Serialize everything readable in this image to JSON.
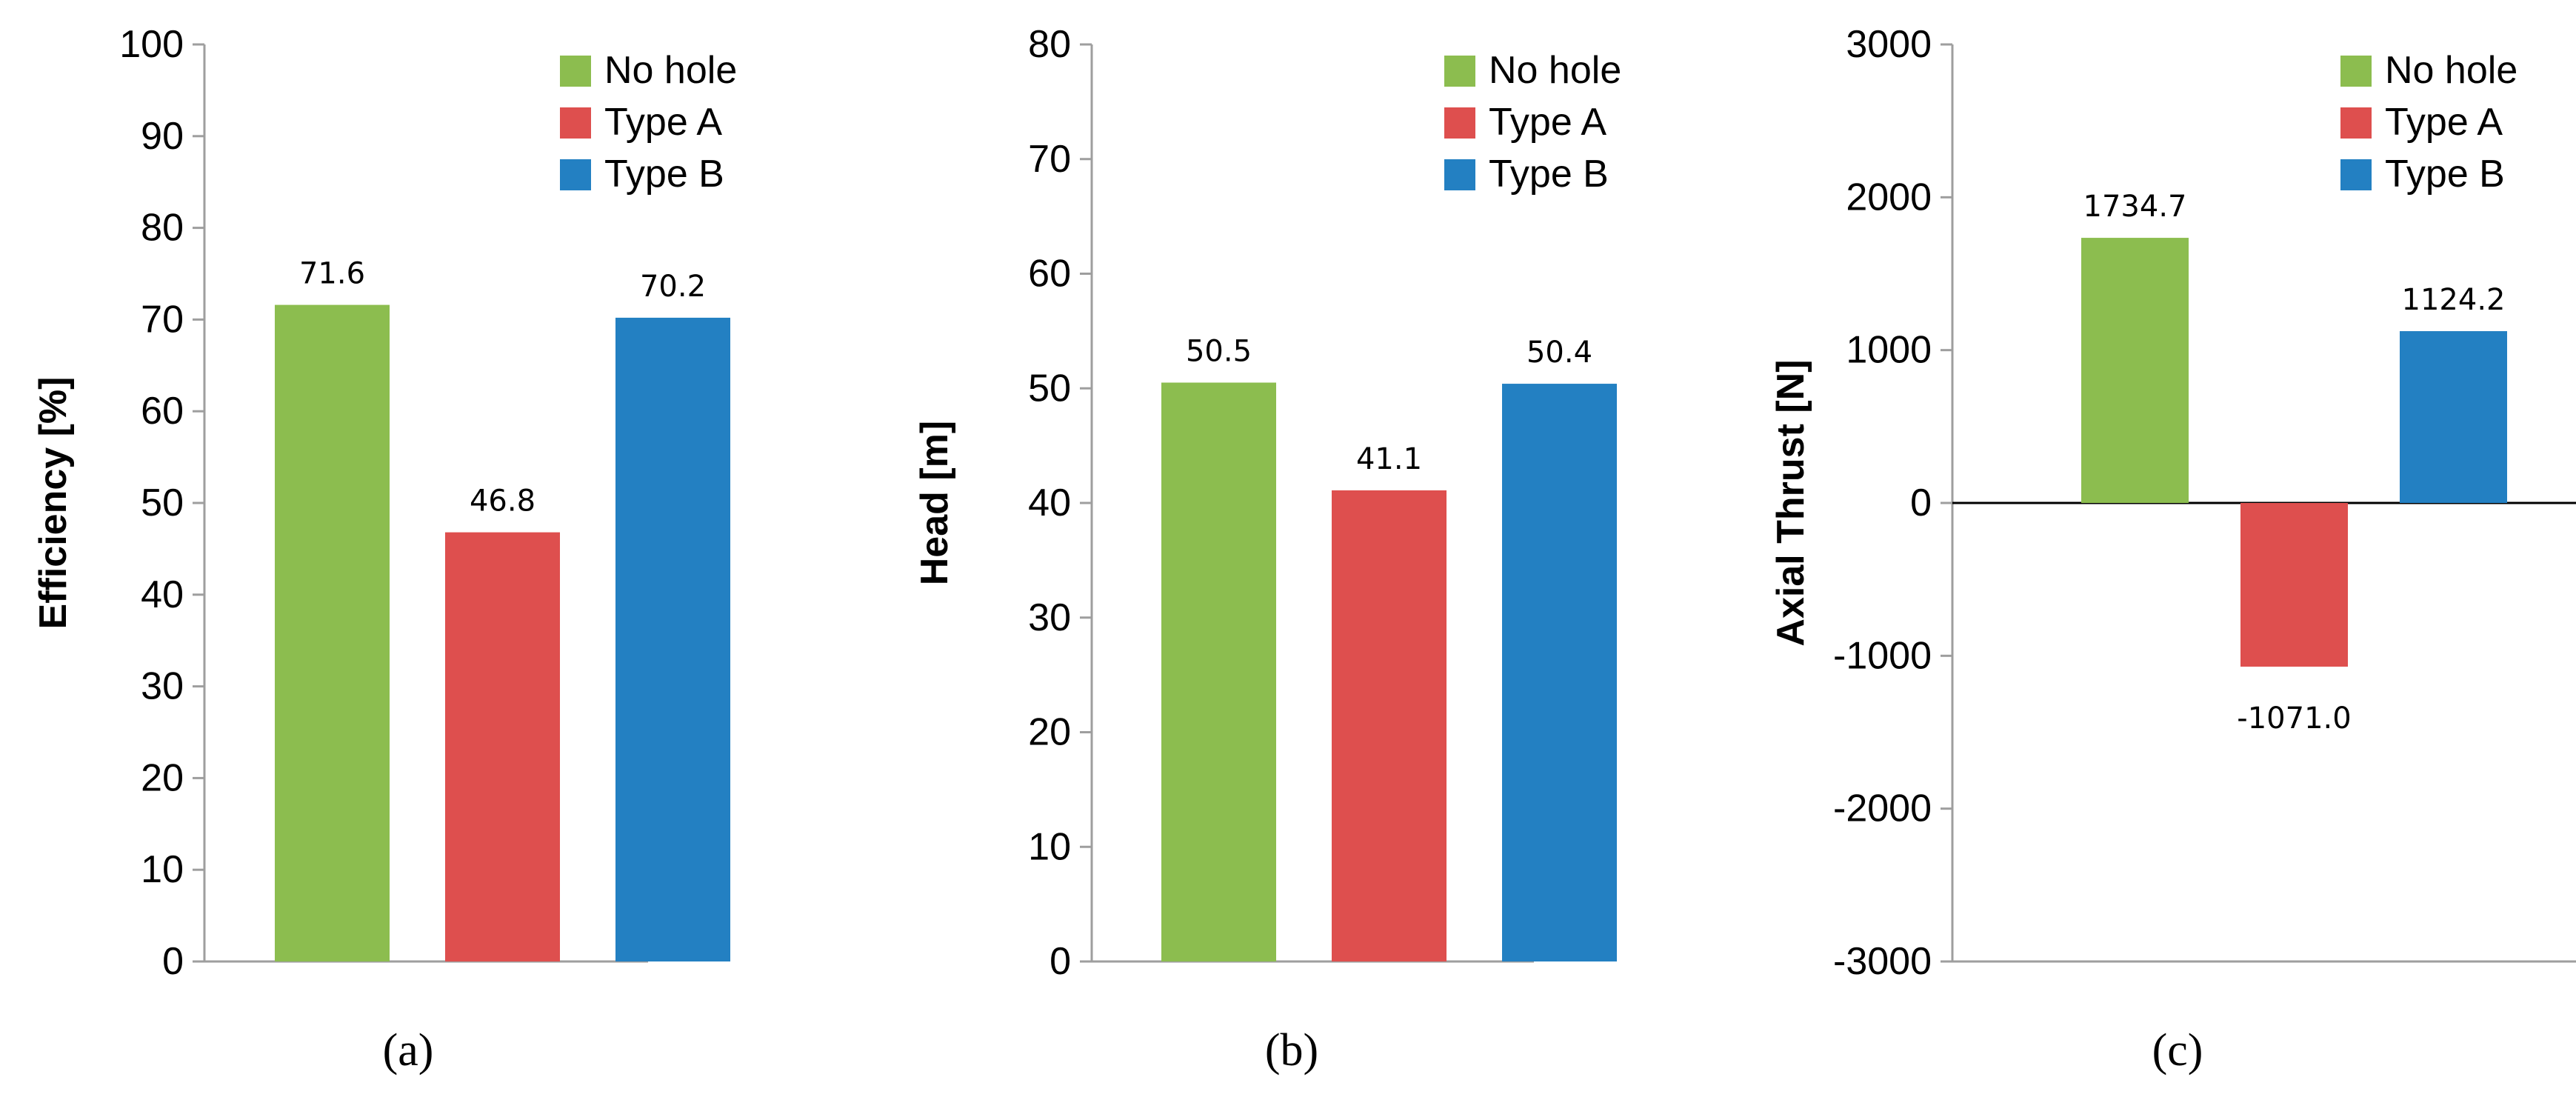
{
  "chart_data": [
    {
      "type": "bar",
      "panel_label": "(a)",
      "ylabel": "Efficiency [%]",
      "ylim": [
        0,
        100
      ],
      "ytick_values": [
        0,
        10,
        20,
        30,
        40,
        50,
        60,
        70,
        80,
        90,
        100
      ],
      "ytick_labels": [
        "0",
        "10",
        "20",
        "30",
        "40",
        "50",
        "60",
        "70",
        "80",
        "90",
        "100"
      ],
      "categories": [
        "No hole",
        "Type A",
        "Type B"
      ],
      "values": [
        71.6,
        46.8,
        70.2
      ],
      "data_labels": [
        "71.6",
        "46.8",
        "70.2"
      ],
      "legend": [
        "No hole",
        "Type A",
        "Type B"
      ],
      "legend_position": "top-right",
      "grid": false
    },
    {
      "type": "bar",
      "panel_label": "(b)",
      "ylabel": "Head [m]",
      "ylim": [
        0,
        80
      ],
      "ytick_values": [
        0,
        10,
        20,
        30,
        40,
        50,
        60,
        70,
        80
      ],
      "ytick_labels": [
        "0",
        "10",
        "20",
        "30",
        "40",
        "50",
        "60",
        "70",
        "80"
      ],
      "categories": [
        "No hole",
        "Type A",
        "Type B"
      ],
      "values": [
        50.5,
        41.1,
        50.4
      ],
      "data_labels": [
        "50.5",
        "41.1",
        "50.4"
      ],
      "legend": [
        "No hole",
        "Type A",
        "Type B"
      ],
      "legend_position": "top-right",
      "grid": false
    },
    {
      "type": "bar",
      "panel_label": "(c)",
      "ylabel": "Axial Thrust [N]",
      "ylim": [
        -3000,
        3000
      ],
      "ytick_values": [
        -3000,
        -2000,
        -1000,
        0,
        1000,
        2000,
        3000
      ],
      "ytick_labels": [
        "-3000",
        "-2000",
        "-1000",
        "0",
        "1000",
        "2000",
        "3000"
      ],
      "categories": [
        "No hole",
        "Type A",
        "Type B"
      ],
      "values": [
        1734.7,
        -1071.0,
        1124.2
      ],
      "data_labels": [
        "1734.7",
        "-1071.0",
        "1124.2"
      ],
      "legend": [
        "No hole",
        "Type A",
        "Type B"
      ],
      "legend_position": "top-right",
      "grid": false
    }
  ],
  "colors": {
    "series": [
      "#8cbd4f",
      "#de4f4e",
      "#2380c2"
    ],
    "axis": "#9e9e9e",
    "zero_line": "#000000",
    "text": "#000000"
  }
}
